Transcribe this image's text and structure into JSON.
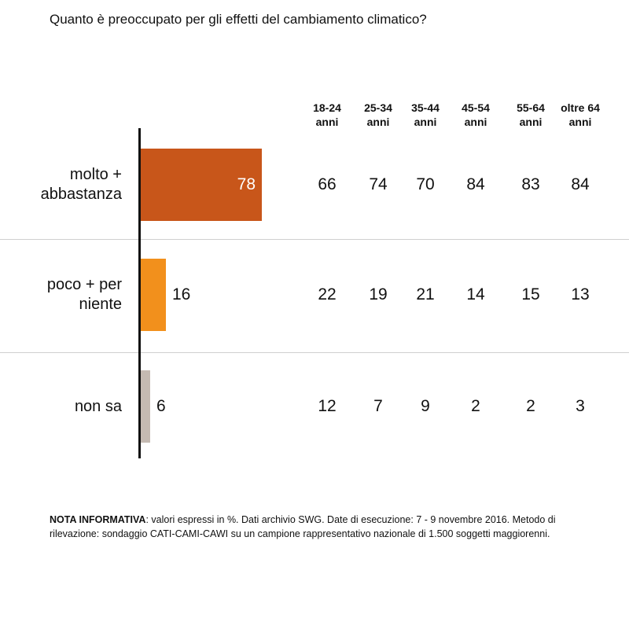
{
  "title": "Quanto è preoccupato per gli effetti del cambiamento climatico?",
  "colors": {
    "bars": [
      "#c8561a",
      "#f2901c",
      "#c5bab2"
    ],
    "axis": "#111111",
    "divider": "#cfcfcf"
  },
  "columns": [
    {
      "line1": "18-24",
      "line2": "anni"
    },
    {
      "line1": "25-34",
      "line2": "anni"
    },
    {
      "line1": "35-44",
      "line2": "anni"
    },
    {
      "line1": "45-54",
      "line2": "anni"
    },
    {
      "line1": "55-64",
      "line2": "anni"
    },
    {
      "line1": "oltre 64",
      "line2": "anni"
    }
  ],
  "rows": [
    {
      "label": "molto +\nabbastanza",
      "total": "78",
      "by_age": [
        "66",
        "74",
        "70",
        "84",
        "83",
        "84"
      ]
    },
    {
      "label": "poco + per\nniente",
      "total": "16",
      "by_age": [
        "22",
        "19",
        "21",
        "14",
        "15",
        "13"
      ]
    },
    {
      "label": "non sa",
      "total": "6",
      "by_age": [
        "12",
        "7",
        "9",
        "2",
        "2",
        "3"
      ]
    }
  ],
  "note": {
    "bold": "NOTA INFORMATIVA",
    "text": ": valori espressi in %. Dati archivio SWG. Date di esecuzione: 7 - 9 novembre 2016. Metodo di rilevazione: sondaggio CATI-CAMI-CAWI su un campione rappresentativo nazionale di 1.500 soggetti maggiorenni."
  },
  "chart_data": {
    "type": "bar",
    "orientation": "horizontal",
    "title": "Quanto è preoccupato per gli effetti del cambiamento climatico?",
    "categories": [
      "molto + abbastanza",
      "poco + per niente",
      "non sa"
    ],
    "values": [
      78,
      16,
      6
    ],
    "unit": "%",
    "table": {
      "columns": [
        "18-24 anni",
        "25-34 anni",
        "35-44 anni",
        "45-54 anni",
        "55-64 anni",
        "oltre 64 anni"
      ],
      "rows": [
        {
          "category": "molto + abbastanza",
          "values": [
            66,
            74,
            70,
            84,
            83,
            84
          ]
        },
        {
          "category": "poco + per niente",
          "values": [
            22,
            19,
            21,
            14,
            15,
            13
          ]
        },
        {
          "category": "non sa",
          "values": [
            12,
            7,
            9,
            2,
            2,
            3
          ]
        }
      ]
    },
    "grid": false,
    "legend": "none"
  }
}
